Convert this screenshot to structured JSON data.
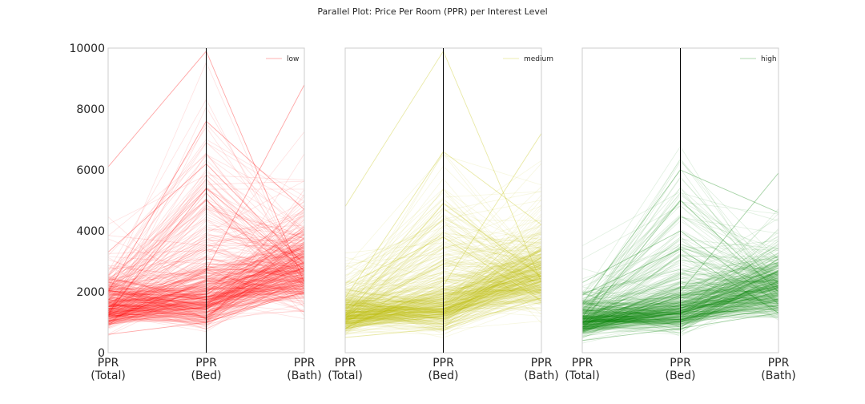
{
  "chart_data": [
    {
      "type": "parallel",
      "title": "Parallel Plot: Price Per Room (PPR) per Interest Level",
      "dimensions": [
        "PPR\n(Total)",
        "PPR\n(Bed)",
        "PPR\n(Bath)"
      ],
      "ylim": [
        0,
        10000
      ],
      "yticks": [
        "0",
        "2000",
        "4000",
        "6000",
        "8000",
        "10000"
      ],
      "grid": false,
      "legend_position": "top-right",
      "series": [
        {
          "name": "low",
          "color": "#ff0000",
          "line_alpha": 0.12,
          "typical_values": [
            1500,
            1800,
            2800
          ],
          "representative_lines": [
            [
              600,
              1000,
              2000
            ],
            [
              1200,
              1500,
              2800
            ],
            [
              1300,
              5400,
              2700
            ],
            [
              2000,
              7600,
              4700
            ],
            [
              3300,
              6200,
              2900
            ],
            [
              6100,
              9900,
              2300
            ],
            [
              1000,
              2700,
              8800
            ]
          ]
        },
        {
          "name": "medium",
          "color": "#bfbf00",
          "line_alpha": 0.12,
          "typical_values": [
            1200,
            1500,
            2600
          ],
          "representative_lines": [
            [
              500,
              800,
              1800
            ],
            [
              1100,
              1400,
              2600
            ],
            [
              1200,
              4900,
              2500
            ],
            [
              1800,
              6600,
              4200
            ],
            [
              4800,
              9900,
              2300
            ],
            [
              800,
              2200,
              7200
            ],
            [
              2200,
              3800,
              1700
            ]
          ]
        },
        {
          "name": "high",
          "color": "#008000",
          "line_alpha": 0.12,
          "typical_values": [
            1000,
            1400,
            2200
          ],
          "representative_lines": [
            [
              400,
              800,
              1300
            ],
            [
              900,
              1300,
              2200
            ],
            [
              1000,
              5000,
              2000
            ],
            [
              1600,
              6000,
              4600
            ],
            [
              2300,
              4000,
              1600
            ],
            [
              700,
              2000,
              5900
            ],
            [
              1900,
              3400,
              1300
            ]
          ]
        }
      ]
    }
  ]
}
